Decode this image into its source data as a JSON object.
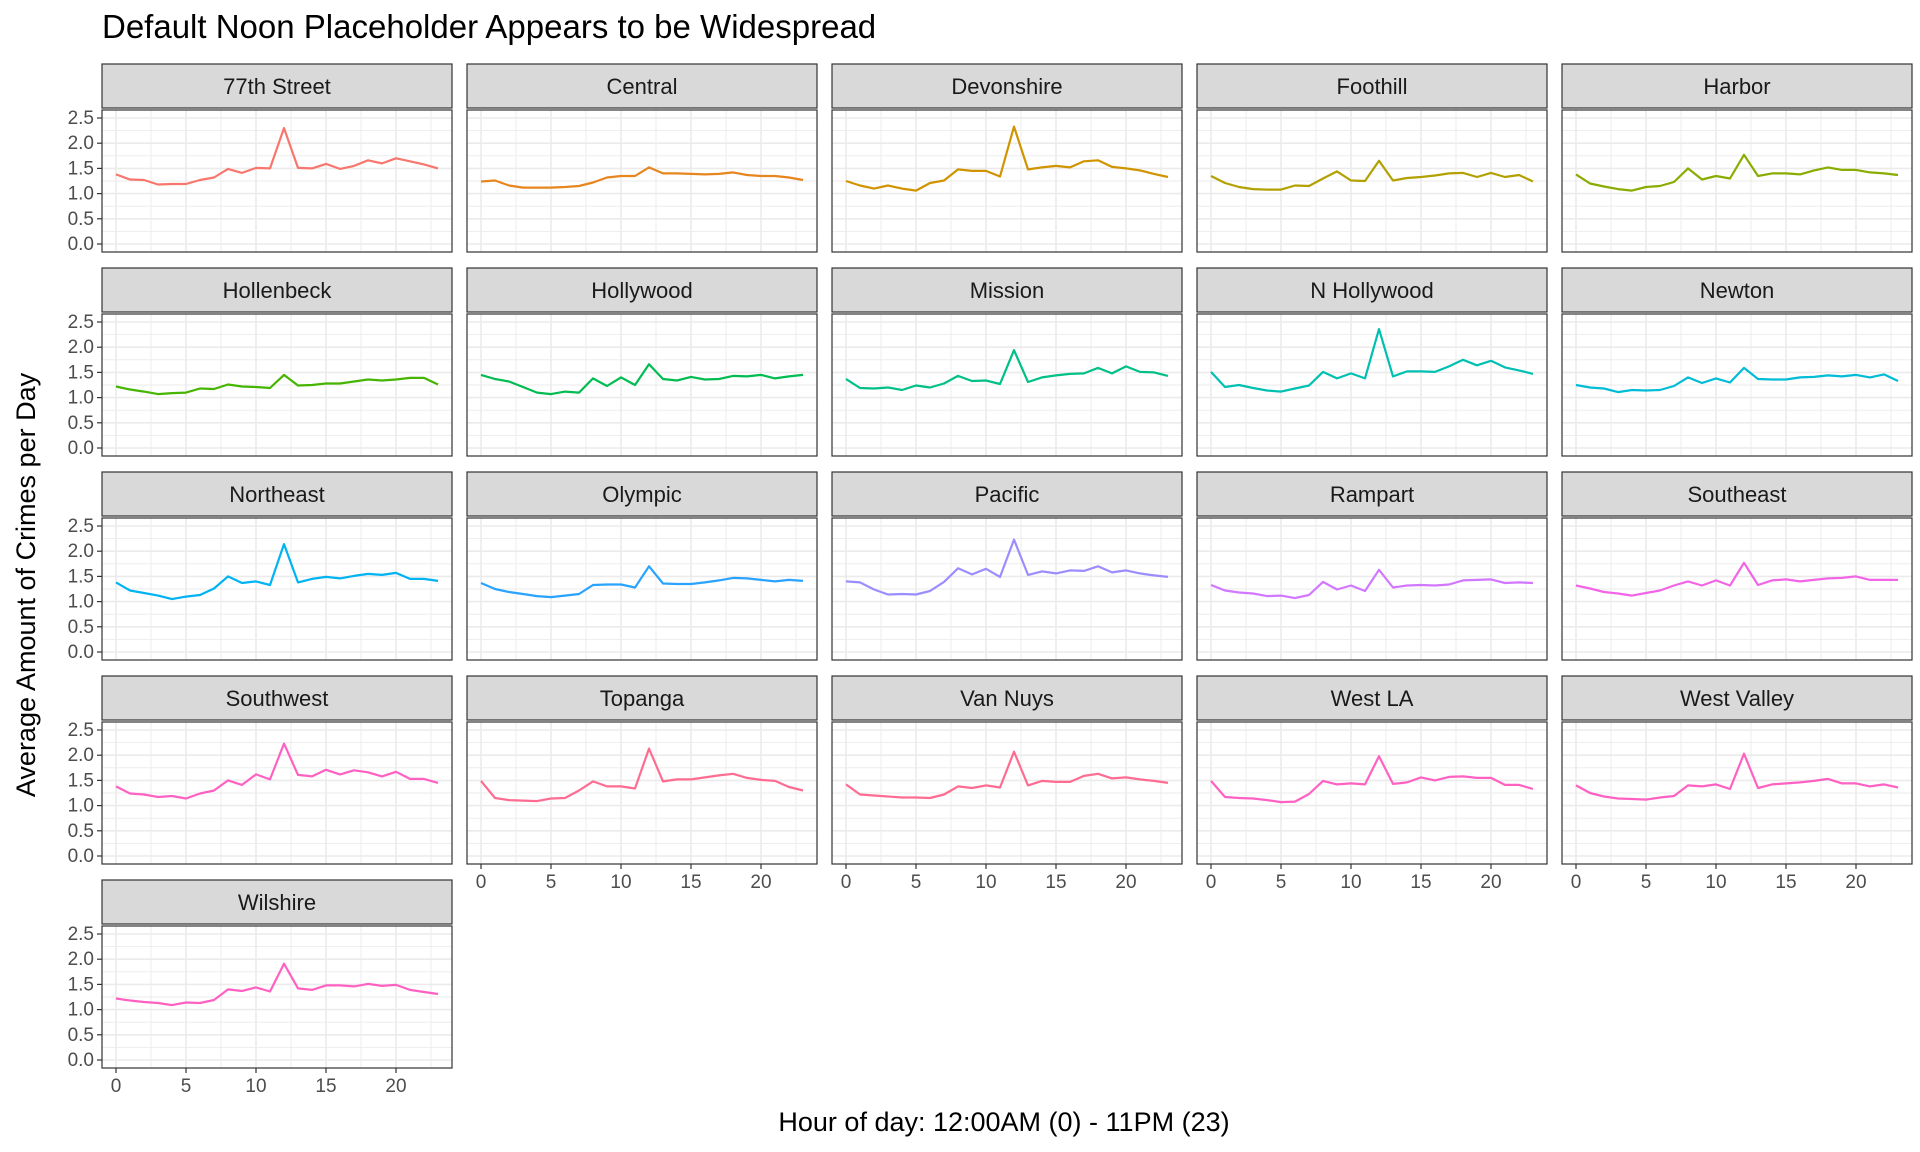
{
  "chart_data": {
    "type": "line",
    "title": "Default Noon Placeholder Appears to be Widespread",
    "xlabel": "Hour of day: 12:00AM (0) - 11PM (23)",
    "ylabel": "Average Amount of Crimes per Day",
    "xlim": [
      0,
      23
    ],
    "ylim": [
      0,
      2.5
    ],
    "x_ticks": [
      0,
      5,
      10,
      15,
      20
    ],
    "y_ticks": [
      0.0,
      0.5,
      1.0,
      1.5,
      2.0,
      2.5
    ],
    "y_tick_labels": [
      "0.0",
      "0.5",
      "1.0",
      "1.5",
      "2.0",
      "2.5"
    ],
    "grid": true,
    "legend": "none",
    "x": [
      0,
      1,
      2,
      3,
      4,
      5,
      6,
      7,
      8,
      9,
      10,
      11,
      12,
      13,
      14,
      15,
      16,
      17,
      18,
      19,
      20,
      21,
      22,
      23
    ],
    "panels": [
      {
        "name": "77th Street",
        "color": "#F8766D",
        "values": [
          1.38,
          1.28,
          1.27,
          1.18,
          1.19,
          1.19,
          1.27,
          1.32,
          1.49,
          1.41,
          1.51,
          1.5,
          2.3,
          1.51,
          1.5,
          1.59,
          1.49,
          1.55,
          1.66,
          1.6,
          1.7,
          1.64,
          1.58,
          1.5
        ]
      },
      {
        "name": "Central",
        "color": "#E7851E",
        "values": [
          1.24,
          1.26,
          1.16,
          1.12,
          1.12,
          1.12,
          1.13,
          1.15,
          1.22,
          1.32,
          1.35,
          1.35,
          1.52,
          1.4,
          1.4,
          1.39,
          1.38,
          1.39,
          1.42,
          1.37,
          1.35,
          1.35,
          1.32,
          1.27
        ]
      },
      {
        "name": "Devonshire",
        "color": "#D09400",
        "values": [
          1.25,
          1.16,
          1.1,
          1.16,
          1.1,
          1.06,
          1.21,
          1.26,
          1.48,
          1.45,
          1.45,
          1.34,
          2.33,
          1.48,
          1.52,
          1.55,
          1.52,
          1.64,
          1.66,
          1.53,
          1.5,
          1.46,
          1.39,
          1.33
        ]
      },
      {
        "name": "Foothill",
        "color": "#B2A100",
        "values": [
          1.35,
          1.21,
          1.13,
          1.09,
          1.08,
          1.08,
          1.16,
          1.15,
          1.3,
          1.44,
          1.26,
          1.25,
          1.65,
          1.26,
          1.31,
          1.33,
          1.36,
          1.4,
          1.41,
          1.33,
          1.41,
          1.33,
          1.37,
          1.24
        ]
      },
      {
        "name": "Harbor",
        "color": "#89AC00",
        "values": [
          1.38,
          1.2,
          1.14,
          1.09,
          1.06,
          1.13,
          1.15,
          1.23,
          1.5,
          1.28,
          1.35,
          1.3,
          1.77,
          1.35,
          1.4,
          1.4,
          1.38,
          1.46,
          1.52,
          1.47,
          1.47,
          1.42,
          1.4,
          1.37
        ]
      },
      {
        "name": "Hollenbeck",
        "color": "#45B500",
        "values": [
          1.22,
          1.16,
          1.12,
          1.07,
          1.09,
          1.1,
          1.18,
          1.17,
          1.26,
          1.22,
          1.21,
          1.19,
          1.45,
          1.24,
          1.25,
          1.28,
          1.28,
          1.32,
          1.36,
          1.34,
          1.36,
          1.39,
          1.39,
          1.26
        ]
      },
      {
        "name": "Hollywood",
        "color": "#00BC51",
        "values": [
          1.45,
          1.37,
          1.32,
          1.21,
          1.1,
          1.07,
          1.12,
          1.1,
          1.38,
          1.23,
          1.4,
          1.25,
          1.66,
          1.37,
          1.34,
          1.41,
          1.36,
          1.37,
          1.43,
          1.42,
          1.45,
          1.38,
          1.42,
          1.45
        ]
      },
      {
        "name": "Mission",
        "color": "#00C087",
        "values": [
          1.37,
          1.19,
          1.18,
          1.2,
          1.15,
          1.24,
          1.2,
          1.28,
          1.43,
          1.33,
          1.34,
          1.27,
          1.94,
          1.31,
          1.4,
          1.44,
          1.47,
          1.48,
          1.59,
          1.48,
          1.62,
          1.51,
          1.5,
          1.43
        ]
      },
      {
        "name": "N Hollywood",
        "color": "#00C0B2",
        "values": [
          1.51,
          1.21,
          1.25,
          1.19,
          1.14,
          1.12,
          1.18,
          1.24,
          1.51,
          1.38,
          1.48,
          1.38,
          2.36,
          1.42,
          1.52,
          1.52,
          1.51,
          1.62,
          1.75,
          1.64,
          1.73,
          1.6,
          1.54,
          1.47
        ]
      },
      {
        "name": "Newton",
        "color": "#00BCD6",
        "values": [
          1.25,
          1.2,
          1.18,
          1.11,
          1.15,
          1.14,
          1.15,
          1.23,
          1.4,
          1.29,
          1.38,
          1.3,
          1.59,
          1.37,
          1.36,
          1.36,
          1.4,
          1.41,
          1.44,
          1.42,
          1.45,
          1.4,
          1.46,
          1.33
        ]
      },
      {
        "name": "Northeast",
        "color": "#00B3F2",
        "values": [
          1.38,
          1.22,
          1.17,
          1.12,
          1.05,
          1.1,
          1.13,
          1.26,
          1.5,
          1.37,
          1.4,
          1.33,
          2.14,
          1.38,
          1.45,
          1.49,
          1.46,
          1.51,
          1.55,
          1.53,
          1.57,
          1.45,
          1.45,
          1.41
        ]
      },
      {
        "name": "Olympic",
        "color": "#29A3FF",
        "values": [
          1.37,
          1.25,
          1.19,
          1.15,
          1.11,
          1.09,
          1.12,
          1.15,
          1.33,
          1.34,
          1.34,
          1.28,
          1.7,
          1.36,
          1.35,
          1.35,
          1.38,
          1.42,
          1.47,
          1.46,
          1.43,
          1.4,
          1.43,
          1.41
        ]
      },
      {
        "name": "Pacific",
        "color": "#9C8DFF",
        "values": [
          1.4,
          1.38,
          1.24,
          1.14,
          1.15,
          1.14,
          1.21,
          1.39,
          1.66,
          1.54,
          1.65,
          1.49,
          2.23,
          1.53,
          1.6,
          1.56,
          1.62,
          1.61,
          1.7,
          1.58,
          1.62,
          1.56,
          1.52,
          1.49
        ]
      },
      {
        "name": "Rampart",
        "color": "#D277FF",
        "values": [
          1.33,
          1.22,
          1.18,
          1.16,
          1.11,
          1.12,
          1.07,
          1.13,
          1.39,
          1.24,
          1.32,
          1.21,
          1.63,
          1.28,
          1.32,
          1.33,
          1.32,
          1.34,
          1.42,
          1.43,
          1.44,
          1.37,
          1.38,
          1.37
        ]
      },
      {
        "name": "Southeast",
        "color": "#F265E7",
        "values": [
          1.32,
          1.26,
          1.19,
          1.16,
          1.12,
          1.17,
          1.22,
          1.32,
          1.4,
          1.32,
          1.42,
          1.32,
          1.77,
          1.33,
          1.42,
          1.44,
          1.4,
          1.43,
          1.46,
          1.47,
          1.5,
          1.43,
          1.43,
          1.43
        ]
      },
      {
        "name": "Southwest",
        "color": "#FF61C3",
        "values": [
          1.38,
          1.24,
          1.22,
          1.17,
          1.19,
          1.14,
          1.24,
          1.3,
          1.5,
          1.41,
          1.62,
          1.52,
          2.23,
          1.61,
          1.58,
          1.71,
          1.62,
          1.7,
          1.66,
          1.58,
          1.67,
          1.53,
          1.53,
          1.45
        ]
      },
      {
        "name": "Topanga",
        "color": "#FF6C91",
        "values": [
          1.49,
          1.15,
          1.11,
          1.1,
          1.09,
          1.14,
          1.15,
          1.3,
          1.48,
          1.38,
          1.38,
          1.34,
          2.13,
          1.48,
          1.52,
          1.52,
          1.56,
          1.6,
          1.63,
          1.55,
          1.51,
          1.49,
          1.37,
          1.3
        ]
      },
      {
        "name": "Van Nuys",
        "color": "#FF6C91",
        "values": [
          1.42,
          1.22,
          1.2,
          1.18,
          1.16,
          1.16,
          1.15,
          1.22,
          1.38,
          1.35,
          1.4,
          1.36,
          2.07,
          1.4,
          1.49,
          1.47,
          1.47,
          1.59,
          1.63,
          1.54,
          1.56,
          1.52,
          1.49,
          1.45
        ]
      },
      {
        "name": "West LA",
        "color": "#FF61C3",
        "values": [
          1.49,
          1.17,
          1.15,
          1.14,
          1.11,
          1.07,
          1.08,
          1.23,
          1.49,
          1.42,
          1.44,
          1.42,
          1.98,
          1.43,
          1.46,
          1.56,
          1.5,
          1.57,
          1.58,
          1.55,
          1.55,
          1.41,
          1.41,
          1.33
        ]
      },
      {
        "name": "West Valley",
        "color": "#FF61C3",
        "values": [
          1.4,
          1.25,
          1.18,
          1.14,
          1.13,
          1.12,
          1.16,
          1.19,
          1.4,
          1.38,
          1.42,
          1.33,
          2.03,
          1.35,
          1.42,
          1.44,
          1.46,
          1.49,
          1.53,
          1.44,
          1.44,
          1.38,
          1.42,
          1.36
        ]
      },
      {
        "name": "Wilshire",
        "color": "#FF61C3",
        "values": [
          1.22,
          1.18,
          1.15,
          1.13,
          1.09,
          1.14,
          1.13,
          1.19,
          1.4,
          1.37,
          1.44,
          1.36,
          1.91,
          1.42,
          1.39,
          1.48,
          1.48,
          1.46,
          1.51,
          1.47,
          1.49,
          1.39,
          1.35,
          1.31
        ]
      }
    ]
  }
}
